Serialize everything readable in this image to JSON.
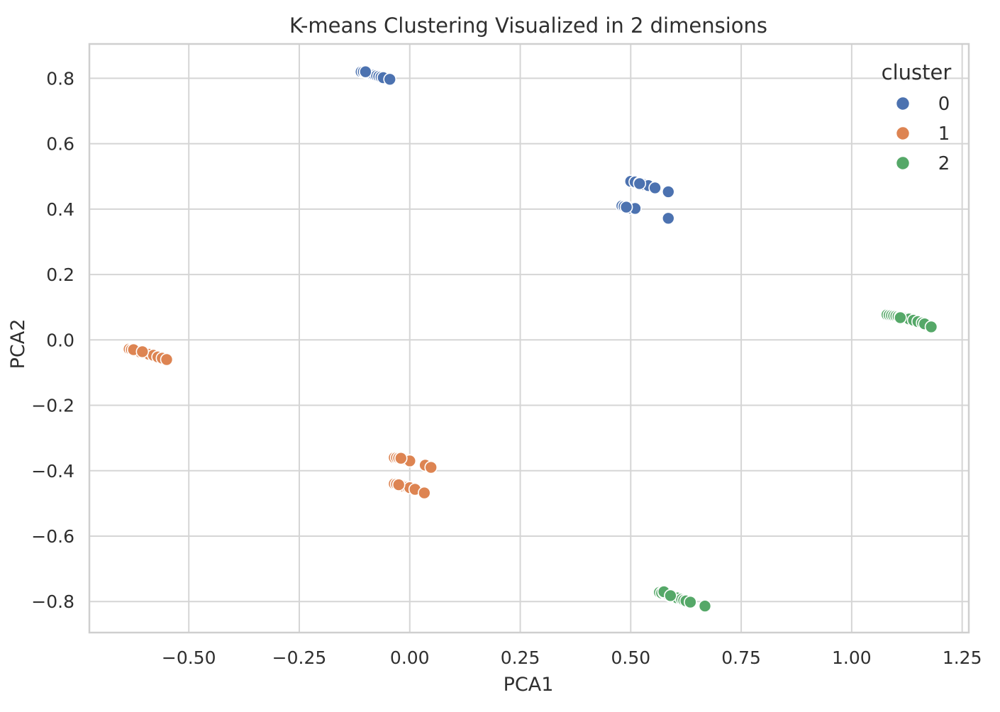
{
  "chart_data": {
    "type": "scatter",
    "title": "K-means Clustering Visualized in 2 dimensions",
    "xlabel": "PCA1",
    "ylabel": "PCA2",
    "xlim": [
      -0.725,
      1.265
    ],
    "ylim": [
      -0.895,
      0.905
    ],
    "xticks": [
      -0.5,
      -0.25,
      0.0,
      0.25,
      0.5,
      0.75,
      1.0,
      1.25
    ],
    "xtick_labels": [
      "−0.50",
      "−0.25",
      "0.00",
      "0.25",
      "0.50",
      "0.75",
      "1.00",
      "1.25"
    ],
    "yticks": [
      0.8,
      0.6,
      0.4,
      0.2,
      0.0,
      -0.2,
      -0.4,
      -0.6,
      -0.8
    ],
    "ytick_labels": [
      "0.8",
      "0.6",
      "0.4",
      "0.2",
      "0.0",
      "−0.2",
      "−0.4",
      "−0.6",
      "−0.8"
    ],
    "grid": true,
    "legend": {
      "title": "cluster",
      "position": "top-right"
    },
    "series": [
      {
        "name": "0",
        "color": "#4C72B0",
        "points": [
          [
            -0.11,
            0.82
          ],
          [
            -0.105,
            0.82
          ],
          [
            -0.1,
            0.818
          ],
          [
            -0.095,
            0.818
          ],
          [
            -0.09,
            0.815
          ],
          [
            -0.085,
            0.812
          ],
          [
            -0.08,
            0.81
          ],
          [
            -0.075,
            0.808
          ],
          [
            -0.07,
            0.806
          ],
          [
            -0.065,
            0.804
          ],
          [
            -0.06,
            0.802
          ],
          [
            -0.045,
            0.797
          ],
          [
            -0.1,
            0.82
          ],
          [
            0.5,
            0.485
          ],
          [
            0.51,
            0.483
          ],
          [
            0.52,
            0.48
          ],
          [
            0.53,
            0.475
          ],
          [
            0.54,
            0.472
          ],
          [
            0.555,
            0.465
          ],
          [
            0.585,
            0.453
          ],
          [
            0.52,
            0.478
          ],
          [
            0.48,
            0.41
          ],
          [
            0.485,
            0.408
          ],
          [
            0.49,
            0.405
          ],
          [
            0.495,
            0.404
          ],
          [
            0.5,
            0.403
          ],
          [
            0.51,
            0.402
          ],
          [
            0.585,
            0.372
          ],
          [
            0.49,
            0.406
          ]
        ]
      },
      {
        "name": "1",
        "color": "#DD8452",
        "points": [
          [
            -0.635,
            -0.028
          ],
          [
            -0.63,
            -0.03
          ],
          [
            -0.625,
            -0.032
          ],
          [
            -0.62,
            -0.033
          ],
          [
            -0.615,
            -0.035
          ],
          [
            -0.61,
            -0.037
          ],
          [
            -0.6,
            -0.04
          ],
          [
            -0.595,
            -0.042
          ],
          [
            -0.59,
            -0.044
          ],
          [
            -0.58,
            -0.047
          ],
          [
            -0.57,
            -0.052
          ],
          [
            -0.56,
            -0.056
          ],
          [
            -0.55,
            -0.06
          ],
          [
            -0.625,
            -0.03
          ],
          [
            -0.605,
            -0.036
          ],
          [
            -0.035,
            -0.36
          ],
          [
            -0.03,
            -0.36
          ],
          [
            -0.025,
            -0.361
          ],
          [
            -0.02,
            -0.362
          ],
          [
            -0.015,
            -0.364
          ],
          [
            -0.01,
            -0.366
          ],
          [
            -0.005,
            -0.368
          ],
          [
            0.0,
            -0.37
          ],
          [
            0.035,
            -0.383
          ],
          [
            0.048,
            -0.39
          ],
          [
            -0.02,
            -0.362
          ],
          [
            -0.035,
            -0.44
          ],
          [
            -0.03,
            -0.441
          ],
          [
            -0.025,
            -0.443
          ],
          [
            -0.02,
            -0.445
          ],
          [
            -0.015,
            -0.447
          ],
          [
            -0.005,
            -0.45
          ],
          [
            0.0,
            -0.452
          ],
          [
            0.012,
            -0.457
          ],
          [
            0.033,
            -0.468
          ],
          [
            -0.025,
            -0.443
          ]
        ]
      },
      {
        "name": "2",
        "color": "#55A868",
        "points": [
          [
            1.08,
            0.077
          ],
          [
            1.085,
            0.076
          ],
          [
            1.09,
            0.075
          ],
          [
            1.095,
            0.074
          ],
          [
            1.1,
            0.073
          ],
          [
            1.105,
            0.072
          ],
          [
            1.11,
            0.071
          ],
          [
            1.115,
            0.07
          ],
          [
            1.12,
            0.068
          ],
          [
            1.125,
            0.066
          ],
          [
            1.13,
            0.064
          ],
          [
            1.14,
            0.06
          ],
          [
            1.15,
            0.056
          ],
          [
            1.16,
            0.052
          ],
          [
            1.165,
            0.049
          ],
          [
            1.18,
            0.04
          ],
          [
            1.11,
            0.068
          ],
          [
            0.565,
            -0.772
          ],
          [
            0.57,
            -0.774
          ],
          [
            0.575,
            -0.772
          ],
          [
            0.58,
            -0.776
          ],
          [
            0.585,
            -0.78
          ],
          [
            0.59,
            -0.783
          ],
          [
            0.6,
            -0.786
          ],
          [
            0.605,
            -0.789
          ],
          [
            0.615,
            -0.793
          ],
          [
            0.62,
            -0.796
          ],
          [
            0.625,
            -0.798
          ],
          [
            0.635,
            -0.802
          ],
          [
            0.668,
            -0.814
          ],
          [
            0.575,
            -0.77
          ],
          [
            0.59,
            -0.782
          ]
        ]
      }
    ]
  }
}
